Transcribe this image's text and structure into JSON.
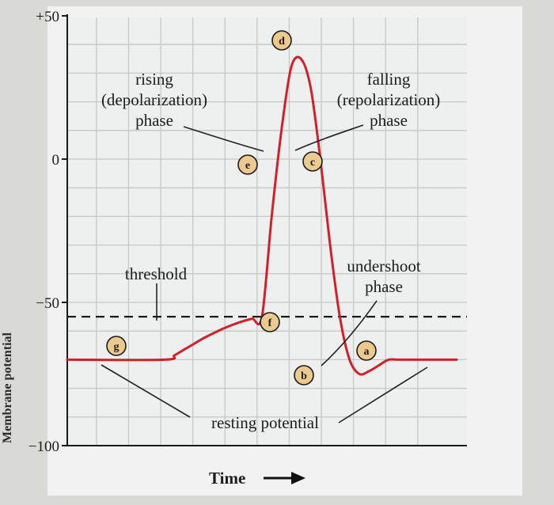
{
  "chart_data": {
    "type": "line",
    "xlabel": "Time",
    "ylabel": "Membrane potential",
    "ylim": [
      -100,
      50
    ],
    "yticks": [
      {
        "value": 50,
        "label": "+50"
      },
      {
        "value": 0,
        "label": "0"
      },
      {
        "value": -50,
        "label": "−50"
      },
      {
        "value": -100,
        "label": "−100"
      }
    ],
    "grid": true,
    "threshold": {
      "value": -55,
      "label": "threshold"
    },
    "series": [
      {
        "x": [
          0,
          10,
          11,
          12,
          13,
          14,
          15,
          16,
          17,
          18,
          19,
          20,
          21,
          22,
          23,
          24,
          25,
          26,
          27,
          28,
          29,
          30,
          31,
          32,
          33,
          34,
          36,
          38,
          40
        ],
        "y": [
          -70,
          -70,
          -68.5,
          -66.5,
          -64.5,
          -62.5,
          -60.8,
          -59.2,
          -57.8,
          -56.6,
          -55.7,
          -55,
          -20,
          10,
          32,
          35,
          25,
          0,
          -30,
          -55,
          -70,
          -75,
          -74,
          -72,
          -70,
          -70,
          -70,
          -70,
          -70
        ]
      }
    ],
    "annotations": [
      {
        "id": "g",
        "badge": "g",
        "lines": []
      },
      {
        "id": "f",
        "badge": "f",
        "lines": []
      },
      {
        "id": "e",
        "badge": "e",
        "lines": []
      },
      {
        "id": "d",
        "badge": "d",
        "lines": []
      },
      {
        "id": "c",
        "badge": "c",
        "lines": []
      },
      {
        "id": "b",
        "badge": "b",
        "lines": []
      },
      {
        "id": "a",
        "badge": "a",
        "lines": []
      },
      {
        "id": "rising",
        "lines": [
          "rising",
          "(depolarization)",
          "phase"
        ]
      },
      {
        "id": "falling",
        "lines": [
          "falling",
          "(repolarization)",
          "phase"
        ]
      },
      {
        "id": "undershoot",
        "lines": [
          "undershoot",
          "phase"
        ]
      },
      {
        "id": "resting",
        "lines": [
          "resting potential"
        ]
      }
    ],
    "colors": {
      "curve": "#d2202b",
      "threshold": "#1a1a1a",
      "grid": "#c6c8c8",
      "axis": "#1a1a1a",
      "background": "#eeefef",
      "badge_fill": "#ecc98e"
    }
  }
}
